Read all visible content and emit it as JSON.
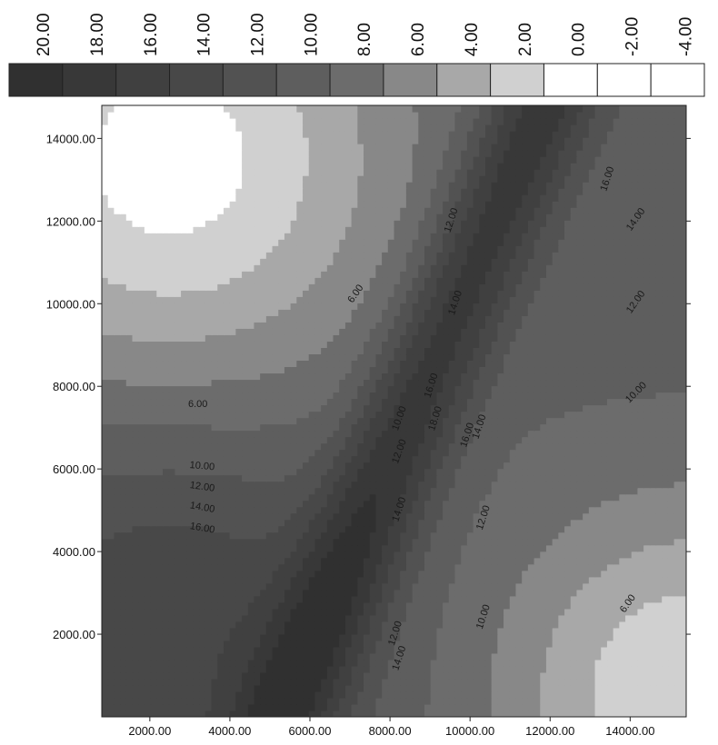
{
  "chart_data": {
    "type": "heatmap",
    "subtype": "filled-contour",
    "title": "",
    "xlabel": "",
    "ylabel": "",
    "xlim": [
      800,
      15400
    ],
    "ylim": [
      0,
      14800
    ],
    "x_ticks": [
      2000,
      4000,
      6000,
      8000,
      10000,
      12000,
      14000
    ],
    "x_tick_labels": [
      "2000.00",
      "4000.00",
      "6000.00",
      "8000.00",
      "10000.00",
      "12000.00",
      "14000.00"
    ],
    "y_ticks": [
      2000,
      4000,
      6000,
      8000,
      10000,
      12000,
      14000
    ],
    "y_tick_labels": [
      "2000.00",
      "4000.00",
      "6000.00",
      "8000.00",
      "10000.00",
      "12000.00",
      "14000.00"
    ],
    "grid": false,
    "colorscale": "grayscale, higher values darker",
    "legend": {
      "placement": "top",
      "levels": [
        20,
        18,
        16,
        14,
        12,
        10,
        8,
        6,
        4,
        2,
        0,
        -2,
        -4
      ],
      "labels": [
        "20.00",
        "18.00",
        "16.00",
        "14.00",
        "12.00",
        "10.00",
        "8.00",
        "6.00",
        "4.00",
        "2.00",
        "0.00",
        "-2.00",
        "-4.00"
      ],
      "colors": [
        "#303030",
        "#383838",
        "#404040",
        "#484848",
        "#525252",
        "#5e5e5e",
        "#6c6c6c",
        "#888888",
        "#a8a8a8",
        "#d0d0d0",
        "#ffffff",
        "#ffffff",
        "#ffffff"
      ]
    },
    "contour_labels": [
      {
        "text": "6.00",
        "x": 7200,
        "y": 10200,
        "angle": -55
      },
      {
        "text": "6.00",
        "x": 3200,
        "y": 7500,
        "angle": 0
      },
      {
        "text": "10.00",
        "x": 3300,
        "y": 6000,
        "angle": 5
      },
      {
        "text": "12.00",
        "x": 3300,
        "y": 5500,
        "angle": 8
      },
      {
        "text": "14.00",
        "x": 3300,
        "y": 5000,
        "angle": 10
      },
      {
        "text": "16.00",
        "x": 3300,
        "y": 4500,
        "angle": 10
      },
      {
        "text": "10.00",
        "x": 8300,
        "y": 7200,
        "angle": -70
      },
      {
        "text": "12.00",
        "x": 8300,
        "y": 6400,
        "angle": -70
      },
      {
        "text": "14.00",
        "x": 8300,
        "y": 5000,
        "angle": -72
      },
      {
        "text": "16.00",
        "x": 9100,
        "y": 8000,
        "angle": -72
      },
      {
        "text": "18.00",
        "x": 9200,
        "y": 7200,
        "angle": -72
      },
      {
        "text": "14.00",
        "x": 9700,
        "y": 10000,
        "angle": -72
      },
      {
        "text": "12.00",
        "x": 9600,
        "y": 12000,
        "angle": -72
      },
      {
        "text": "16.00",
        "x": 10000,
        "y": 6800,
        "angle": -72
      },
      {
        "text": "14.00",
        "x": 10300,
        "y": 7000,
        "angle": -72
      },
      {
        "text": "12.00",
        "x": 10400,
        "y": 4800,
        "angle": -72
      },
      {
        "text": "10.00",
        "x": 10400,
        "y": 2400,
        "angle": -72
      },
      {
        "text": "12.00",
        "x": 8200,
        "y": 2000,
        "angle": -72
      },
      {
        "text": "14.00",
        "x": 8300,
        "y": 1400,
        "angle": -72
      },
      {
        "text": "16.00",
        "x": 13500,
        "y": 13000,
        "angle": -72
      },
      {
        "text": "14.00",
        "x": 14200,
        "y": 12000,
        "angle": -55
      },
      {
        "text": "12.00",
        "x": 14200,
        "y": 10000,
        "angle": -55
      },
      {
        "text": "10.00",
        "x": 14200,
        "y": 7800,
        "angle": -45
      },
      {
        "text": "6.00",
        "x": 14000,
        "y": 2700,
        "angle": -55
      }
    ]
  }
}
